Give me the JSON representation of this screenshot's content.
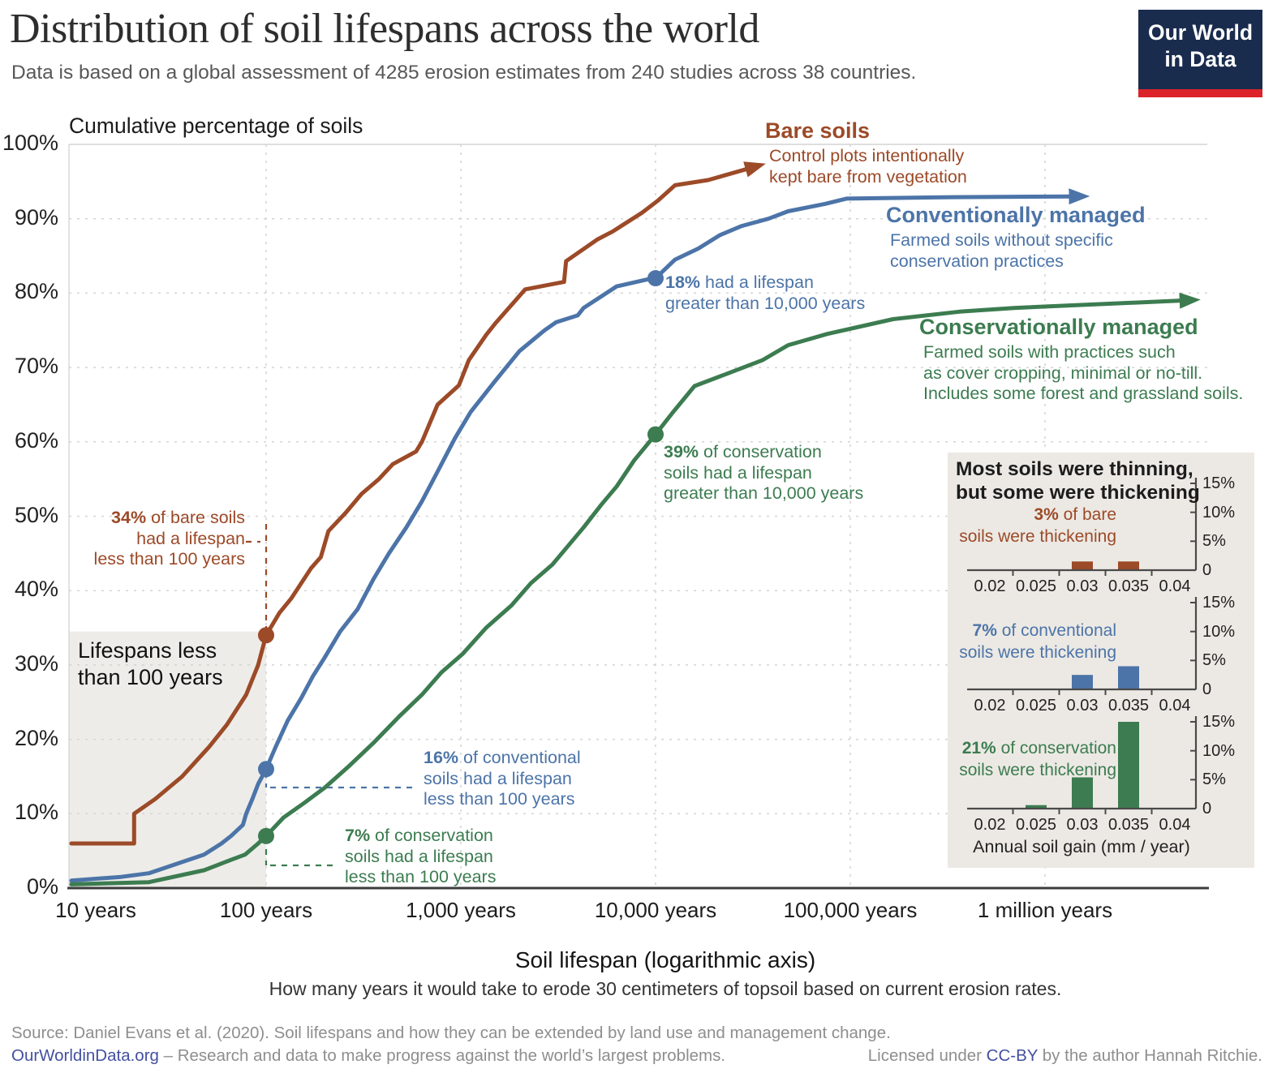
{
  "header": {
    "title": "Distribution of soil lifespans across the world",
    "subtitle": "Data is based on a global assessment of 4285 erosion estimates from 240 studies across 38 countries.",
    "logo_line1": "Our World",
    "logo_line2": "in Data"
  },
  "colors": {
    "bare": "#9C4A28",
    "conventional": "#4C74A8",
    "conservation": "#3C7C50",
    "grid": "#D4D4D4",
    "axis": "#3C3C3C",
    "panel": "#ECE9E4",
    "shade": "#EDECE8",
    "link": "#4350A0",
    "logo-bg": "#1A2C4E",
    "logo-red": "#DC2329"
  },
  "axis": {
    "y_title": "Cumulative percentage of soils",
    "y_ticks": [
      "0%",
      "10%",
      "20%",
      "30%",
      "40%",
      "50%",
      "60%",
      "70%",
      "80%",
      "90%",
      "100%"
    ],
    "x_ticks": [
      "10 years",
      "100 years",
      "1,000 years",
      "10,000 years",
      "100,000 years",
      "1 million years"
    ],
    "x_title": "Soil lifespan (logarithmic axis)",
    "x_subtitle": "How many years it would take to erode 30 centimeters of topsoil based on current erosion rates."
  },
  "shaded_label": {
    "line1": "Lifespans less",
    "line2": "than 100 years"
  },
  "series_labels": {
    "bare": {
      "title": "Bare soils",
      "desc": [
        "Control plots intentionally",
        "kept bare from vegetation"
      ]
    },
    "conventional": {
      "title": "Conventionally managed",
      "desc": [
        "Farmed soils without specific",
        "conservation practices"
      ]
    },
    "conservation": {
      "title": "Conservationally managed",
      "desc": [
        "Farmed soils with practices such",
        "as cover cropping, minimal or no-till.",
        "Includes some forest and grassland soils."
      ]
    }
  },
  "callouts": {
    "bare_under100": {
      "strong": "34%",
      "rest": " of bare soils",
      "line2": "had a lifespan",
      "line3": "less than 100 years"
    },
    "conv_under100": {
      "strong": "16%",
      "rest": " of conventional",
      "line2": "soils had a lifespan",
      "line3": "less than 100 years"
    },
    "cons_under100": {
      "strong": "7%",
      "rest": " of conservation",
      "line2": "soils had a lifespan",
      "line3": "less than 100 years"
    },
    "conv_over10k": {
      "strong": "18%",
      "rest": " had a lifespan",
      "line2": "greater than 10,000 years"
    },
    "cons_over10k": {
      "strong": "39%",
      "rest": " of conservation",
      "line2": "soils had a lifespan",
      "line3": "greater than 10,000 years"
    }
  },
  "inset": {
    "title_line1": "Most soils were thinning,",
    "title_line2": "but some were thickening",
    "xlabel": "Annual soil gain (mm / year)",
    "xticks": [
      "0.02",
      "0.025",
      "0.03",
      "0.035",
      "0.04"
    ],
    "yticks": [
      "0",
      "5%",
      "10%",
      "15%"
    ],
    "annotations": [
      {
        "strong": "3%",
        "rest": " of bare",
        "line2": "soils were thickening"
      },
      {
        "strong": "7%",
        "rest": " of conventional",
        "line2": "soils were thickening"
      },
      {
        "strong": "21%",
        "rest": " of conservation",
        "line2": "soils were thickening"
      }
    ]
  },
  "footer": {
    "source": "Source: Daniel Evans et al. (2020). Soil lifespans and how they can be extended by land use and management change.",
    "brand": "OurWorldinData.org",
    "tagline": " – Research and data to make progress against the world’s largest problems.",
    "license_pre": "Licensed under ",
    "license_link": "CC-BY",
    "license_post": " by the author Hannah Ritchie."
  },
  "chart_data": [
    {
      "type": "line",
      "title": "Cumulative percentage of soils",
      "xlabel": "Soil lifespan (logarithmic axis)",
      "x_scale": "log10",
      "x_ticks_years": [
        10,
        100,
        1000,
        10000,
        100000,
        1000000
      ],
      "ylim": [
        0,
        100
      ],
      "grid": true,
      "shaded_region": {
        "label": "Lifespans less than 100 years",
        "x_max_years": 100,
        "top_pct": 34.5
      },
      "series": [
        {
          "name": "Bare soils",
          "color": "#9C4A28",
          "dots": [
            [
              100,
              34
            ]
          ],
          "points": [
            [
              10,
              6
            ],
            [
              21,
              6
            ],
            [
              21,
              10
            ],
            [
              27,
              12
            ],
            [
              37,
              15
            ],
            [
              51,
              19
            ],
            [
              63,
              22
            ],
            [
              79,
              26
            ],
            [
              91,
              30
            ],
            [
              100,
              34
            ],
            [
              117,
              37
            ],
            [
              135,
              39
            ],
            [
              170,
              43
            ],
            [
              191,
              44.5
            ],
            [
              209,
              48
            ],
            [
              257,
              50.5
            ],
            [
              309,
              53
            ],
            [
              380,
              55
            ],
            [
              447,
              57
            ],
            [
              589,
              58.7
            ],
            [
              631,
              60
            ],
            [
              759,
              65
            ],
            [
              977,
              67.6
            ],
            [
              1100,
              71
            ],
            [
              1350,
              74.4
            ],
            [
              1510,
              76
            ],
            [
              2140,
              80.5
            ],
            [
              3390,
              81.5
            ],
            [
              3470,
              84.3
            ],
            [
              5010,
              87.2
            ],
            [
              6030,
              88.3
            ],
            [
              8510,
              90.8
            ],
            [
              10230,
              92.4
            ],
            [
              12590,
              94.5
            ],
            [
              18620,
              95.2
            ],
            [
              29510,
              96.7
            ]
          ]
        },
        {
          "name": "Conventionally managed",
          "color": "#4C74A8",
          "dots": [
            [
              100,
              16
            ],
            [
              10000,
              82
            ]
          ],
          "points": [
            [
              10,
              1
            ],
            [
              18,
              1.5
            ],
            [
              25,
              2
            ],
            [
              37,
              3.5
            ],
            [
              48,
              4.5
            ],
            [
              59,
              6
            ],
            [
              66,
              7
            ],
            [
              76,
              8.5
            ],
            [
              79,
              10
            ],
            [
              85,
              12
            ],
            [
              91,
              14
            ],
            [
              100,
              16
            ],
            [
              112,
              19
            ],
            [
              129,
              22.5
            ],
            [
              151,
              25.5
            ],
            [
              174,
              28.5
            ],
            [
              200,
              31
            ],
            [
              240,
              34.5
            ],
            [
              295,
              37.5
            ],
            [
              355,
              41.5
            ],
            [
              427,
              45
            ],
            [
              525,
              48.5
            ],
            [
              631,
              52
            ],
            [
              759,
              56
            ],
            [
              933,
              60.5
            ],
            [
              1122,
              64
            ],
            [
              1480,
              68
            ],
            [
              2000,
              72.2
            ],
            [
              2690,
              75
            ],
            [
              3090,
              76.1
            ],
            [
              3980,
              77
            ],
            [
              4270,
              78
            ],
            [
              6310,
              80.9
            ],
            [
              8910,
              81.8
            ],
            [
              10000,
              82
            ],
            [
              12590,
              84.5
            ],
            [
              16600,
              86
            ],
            [
              21400,
              87.8
            ],
            [
              27500,
              89
            ],
            [
              38000,
              90
            ],
            [
              47900,
              91
            ],
            [
              74100,
              92
            ],
            [
              95500,
              92.7
            ],
            [
              331000,
              92.9
            ],
            [
              1350000,
              93
            ]
          ]
        },
        {
          "name": "Conservationally managed",
          "color": "#3C7C50",
          "dots": [
            [
              100,
              7
            ],
            [
              10000,
              61
            ]
          ],
          "points": [
            [
              10,
              0.5
            ],
            [
              25,
              0.8
            ],
            [
              48,
              2.4
            ],
            [
              66,
              3.8
            ],
            [
              78,
              4.5
            ],
            [
              91,
              6
            ],
            [
              100,
              7
            ],
            [
              123,
              9.5
            ],
            [
              158,
              11.5
            ],
            [
              200,
              13.5
            ],
            [
              269,
              16.5
            ],
            [
              355,
              19.5
            ],
            [
              479,
              23
            ],
            [
              631,
              26
            ],
            [
              794,
              29
            ],
            [
              1023,
              31.5
            ],
            [
              1349,
              35
            ],
            [
              1820,
              38
            ],
            [
              2290,
              41
            ],
            [
              2950,
              43.5
            ],
            [
              3550,
              46
            ],
            [
              4270,
              48.5
            ],
            [
              5250,
              51.5
            ],
            [
              6310,
              54
            ],
            [
              7760,
              57.5
            ],
            [
              10000,
              61
            ],
            [
              12300,
              64
            ],
            [
              15850,
              67.5
            ],
            [
              22400,
              69
            ],
            [
              35500,
              71
            ],
            [
              47900,
              73
            ],
            [
              75900,
              74.5
            ],
            [
              166000,
              76.5
            ],
            [
              363000,
              77.5
            ],
            [
              692000,
              78
            ],
            [
              5000000,
              79
            ]
          ]
        }
      ]
    },
    {
      "type": "bar",
      "title": "3% of bare soils were thickening",
      "color": "#9C4A28",
      "categories": [
        0.02,
        0.025,
        0.03,
        0.035,
        0.04
      ],
      "values": [
        0,
        0,
        1.5,
        1.5,
        0
      ],
      "xlabel": "Annual soil gain (mm / year)",
      "ylim": [
        0,
        15
      ]
    },
    {
      "type": "bar",
      "title": "7% of conventional soils were thickening",
      "color": "#4C74A8",
      "categories": [
        0.02,
        0.025,
        0.03,
        0.035,
        0.04
      ],
      "values": [
        0,
        0,
        2.5,
        4,
        0
      ],
      "xlabel": "Annual soil gain (mm / year)",
      "ylim": [
        0,
        15
      ]
    },
    {
      "type": "bar",
      "title": "21% of conservation soils were thickening",
      "color": "#3C7C50",
      "categories": [
        0.02,
        0.025,
        0.03,
        0.035,
        0.04
      ],
      "values": [
        0,
        0.6,
        5.4,
        15,
        0
      ],
      "xlabel": "Annual soil gain (mm / year)",
      "ylim": [
        0,
        15
      ]
    }
  ]
}
